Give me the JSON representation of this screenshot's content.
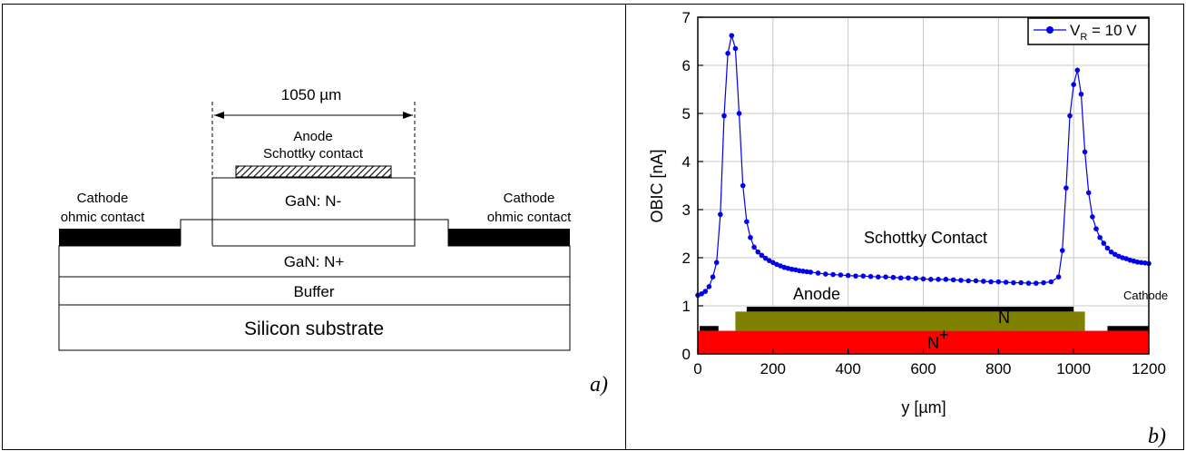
{
  "diagram": {
    "dimension_label": "1050 µm",
    "anode_label_line1": "Anode",
    "anode_label_line2": "Schottky contact",
    "gan_n_minus": "GaN: N-",
    "gan_n_plus": "GaN: N+",
    "buffer": "Buffer",
    "substrate": "Silicon substrate",
    "cathode_left_line1": "Cathode",
    "cathode_left_line2": "ohmic contact",
    "cathode_right_line1": "Cathode",
    "cathode_right_line2": "ohmic contact",
    "panel_label": "a)"
  },
  "plot": {
    "panel_label": "b)",
    "inset_schottky": "Schottky Contact",
    "inset_anode": "Anode",
    "inset_cathode": "Cathode",
    "inset_n": "N",
    "inset_nplus": "N",
    "inset_nplus_sup": "+",
    "colors": {
      "series": "#0000ee",
      "n_layer": "#808000",
      "nplus_layer": "#ff0000",
      "contacts": "#000000",
      "grid": "#c8c8c8"
    }
  },
  "chart_data": {
    "type": "line",
    "xlabel": "y [µm]",
    "ylabel": "OBIC [nA]",
    "xlim": [
      0,
      1200
    ],
    "ylim": [
      0,
      7
    ],
    "xticks": [
      0,
      200,
      400,
      600,
      800,
      1000,
      1200
    ],
    "yticks": [
      0,
      1,
      2,
      3,
      4,
      5,
      6,
      7
    ],
    "grid": true,
    "legend_position": "top-right",
    "legend_text": "V",
    "legend_sub": "R",
    "legend_suffix": " = 10 V",
    "series": [
      {
        "name": "VR = 10 V",
        "x": [
          0,
          10,
          20,
          30,
          40,
          50,
          60,
          70,
          80,
          90,
          100,
          110,
          120,
          130,
          140,
          150,
          160,
          170,
          180,
          190,
          200,
          210,
          220,
          230,
          240,
          250,
          260,
          270,
          280,
          290,
          300,
          320,
          340,
          360,
          380,
          400,
          420,
          440,
          460,
          480,
          500,
          520,
          540,
          560,
          580,
          600,
          620,
          640,
          660,
          680,
          700,
          720,
          740,
          760,
          780,
          800,
          820,
          840,
          860,
          880,
          900,
          920,
          940,
          960,
          970,
          980,
          990,
          1000,
          1010,
          1020,
          1030,
          1040,
          1050,
          1060,
          1070,
          1080,
          1090,
          1100,
          1110,
          1120,
          1130,
          1140,
          1150,
          1160,
          1170,
          1180,
          1190,
          1200
        ],
        "y": [
          1.22,
          1.25,
          1.3,
          1.4,
          1.6,
          1.9,
          2.9,
          4.95,
          6.25,
          6.62,
          6.35,
          5.0,
          3.5,
          2.75,
          2.42,
          2.22,
          2.12,
          2.05,
          1.99,
          1.94,
          1.9,
          1.86,
          1.83,
          1.8,
          1.78,
          1.76,
          1.75,
          1.73,
          1.72,
          1.71,
          1.7,
          1.68,
          1.66,
          1.65,
          1.64,
          1.63,
          1.62,
          1.62,
          1.61,
          1.6,
          1.6,
          1.59,
          1.58,
          1.58,
          1.57,
          1.56,
          1.55,
          1.55,
          1.55,
          1.54,
          1.53,
          1.52,
          1.52,
          1.51,
          1.5,
          1.5,
          1.49,
          1.48,
          1.48,
          1.47,
          1.47,
          1.48,
          1.5,
          1.6,
          2.15,
          3.45,
          4.95,
          5.6,
          5.9,
          5.4,
          4.2,
          3.35,
          2.85,
          2.6,
          2.42,
          2.3,
          2.2,
          2.12,
          2.07,
          2.03,
          2.0,
          1.98,
          1.95,
          1.93,
          1.91,
          1.9,
          1.89,
          1.88
        ]
      }
    ]
  }
}
